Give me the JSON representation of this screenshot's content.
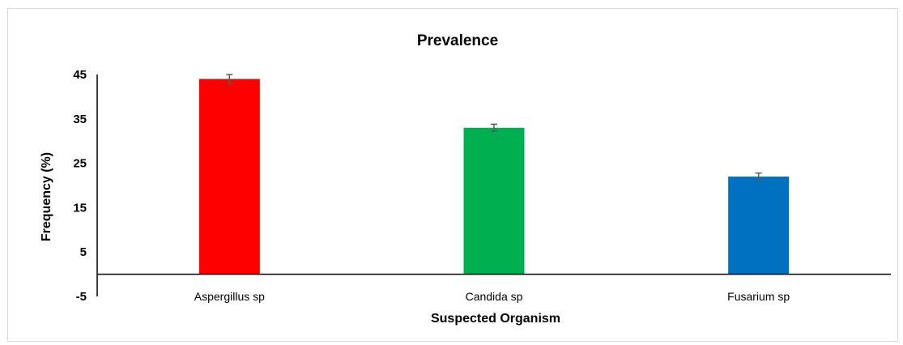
{
  "chart_data": {
    "type": "bar",
    "title": "Prevalence",
    "xlabel": "Suspected Organism",
    "ylabel": "Frequency (%)",
    "categories": [
      "Aspergillus sp",
      "Candida sp",
      "Fusarium sp"
    ],
    "values": [
      44,
      33,
      22
    ],
    "errors": [
      1,
      0.8,
      0.8
    ],
    "colors": [
      "#ff0000",
      "#00b050",
      "#0070c0"
    ],
    "error_bar_color": "#595959",
    "yticks": [
      45,
      35,
      25,
      15,
      5,
      -5
    ],
    "ylim": [
      -5,
      45
    ],
    "grid": false,
    "legend": "none"
  }
}
